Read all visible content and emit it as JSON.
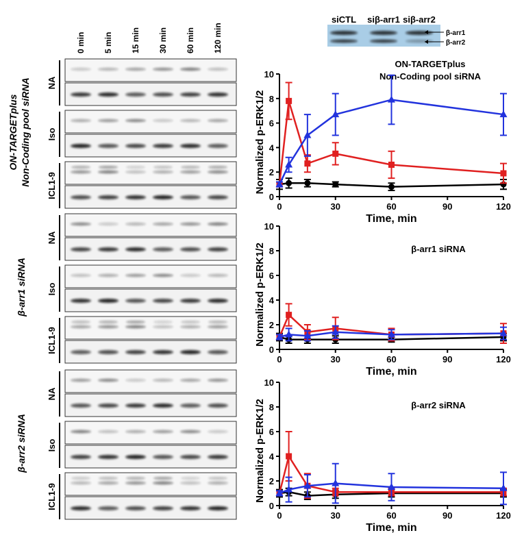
{
  "blots": {
    "time_labels": [
      "0 min",
      "5 min",
      "15 min",
      "30 min",
      "60 min",
      "120 min"
    ],
    "groups": [
      {
        "label": [
          "ON-TARGETplus",
          "Non-Coding pool siRNA"
        ],
        "rows": [
          "NA",
          "Iso",
          "ICL1-9"
        ]
      },
      {
        "label": [
          "β-arr1 siRNA"
        ],
        "rows": [
          "NA",
          "Iso",
          "ICL1-9"
        ]
      },
      {
        "label": [
          "β-arr2 siRNA"
        ],
        "rows": [
          "NA",
          "Iso",
          "ICL1-9"
        ]
      }
    ]
  },
  "inset": {
    "lanes": [
      "siCTL",
      "siβ-arr1",
      "siβ-arr2"
    ],
    "bands": [
      "β-arr1",
      "β-arr2"
    ]
  },
  "chart_data": [
    {
      "type": "line",
      "annotation": [
        "ON-TARGETplus",
        "Non-Coding pool siRNA"
      ],
      "x_label": "Time, min",
      "y_label": "Normalized p-ERK1/2",
      "x": [
        0,
        5,
        15,
        30,
        60,
        120
      ],
      "xlim": [
        0,
        120
      ],
      "xticks": [
        0,
        30,
        60,
        90,
        120
      ],
      "ylim": [
        0,
        10
      ],
      "yticks": [
        0,
        2,
        4,
        6,
        8,
        10
      ],
      "series": [
        {
          "color": "#000000",
          "marker": "circle",
          "values": [
            1,
            1.1,
            1.1,
            1.0,
            0.8,
            1.0
          ],
          "errors": [
            0.4,
            0.4,
            0.3,
            0.2,
            0.3,
            0.4
          ]
        },
        {
          "color": "#e02020",
          "marker": "square",
          "values": [
            1,
            7.8,
            2.7,
            3.5,
            2.6,
            1.9
          ],
          "errors": [
            0.2,
            1.5,
            0.7,
            0.9,
            1.1,
            0.8
          ]
        },
        {
          "color": "#2233dd",
          "marker": "triangle",
          "values": [
            1,
            2.6,
            5.0,
            6.7,
            7.9,
            6.7
          ],
          "errors": [
            0.2,
            0.6,
            1.7,
            1.7,
            2.0,
            1.7
          ]
        }
      ]
    },
    {
      "type": "line",
      "annotation": [
        "β-arr1 siRNA"
      ],
      "x_label": "Time, min",
      "y_label": "Normalized p-ERK1/2",
      "x": [
        0,
        5,
        15,
        30,
        60,
        120
      ],
      "xlim": [
        0,
        120
      ],
      "xticks": [
        0,
        30,
        60,
        90,
        120
      ],
      "ylim": [
        0,
        10
      ],
      "yticks": [
        0,
        2,
        4,
        6,
        8,
        10
      ],
      "series": [
        {
          "color": "#000000",
          "marker": "circle",
          "values": [
            1,
            0.8,
            0.8,
            0.8,
            0.8,
            1.0
          ],
          "errors": [
            0.3,
            0.3,
            0.3,
            0.3,
            0.2,
            0.3
          ]
        },
        {
          "color": "#e02020",
          "marker": "square",
          "values": [
            1,
            2.8,
            1.4,
            1.7,
            1.2,
            1.3
          ],
          "errors": [
            0.2,
            0.9,
            0.6,
            0.9,
            0.5,
            0.8
          ]
        },
        {
          "color": "#2233dd",
          "marker": "triangle",
          "values": [
            1,
            1.2,
            1.1,
            1.4,
            1.2,
            1.3
          ],
          "errors": [
            0.2,
            0.5,
            0.4,
            0.5,
            0.4,
            0.5
          ]
        }
      ]
    },
    {
      "type": "line",
      "annotation": [
        "β-arr2 siRNA"
      ],
      "x_label": "Time, min",
      "y_label": "Normalized p-ERK1/2",
      "x": [
        0,
        5,
        15,
        30,
        60,
        120
      ],
      "xlim": [
        0,
        120
      ],
      "xticks": [
        0,
        30,
        60,
        90,
        120
      ],
      "ylim": [
        0,
        10
      ],
      "yticks": [
        0,
        2,
        4,
        6,
        8,
        10
      ],
      "series": [
        {
          "color": "#000000",
          "marker": "circle",
          "values": [
            1,
            1.1,
            0.8,
            0.9,
            1.0,
            1.0
          ],
          "errors": [
            0.3,
            0.3,
            0.3,
            0.3,
            0.3,
            0.3
          ]
        },
        {
          "color": "#e02020",
          "marker": "square",
          "values": [
            1,
            4.0,
            1.6,
            1.1,
            1.1,
            1.1
          ],
          "errors": [
            0.2,
            2.0,
            1.0,
            0.3,
            0.3,
            0.3
          ]
        },
        {
          "color": "#2233dd",
          "marker": "triangle",
          "values": [
            1,
            1.3,
            1.6,
            1.8,
            1.5,
            1.4
          ],
          "errors": [
            0.2,
            1.0,
            0.9,
            1.6,
            1.1,
            1.3
          ]
        }
      ]
    }
  ]
}
